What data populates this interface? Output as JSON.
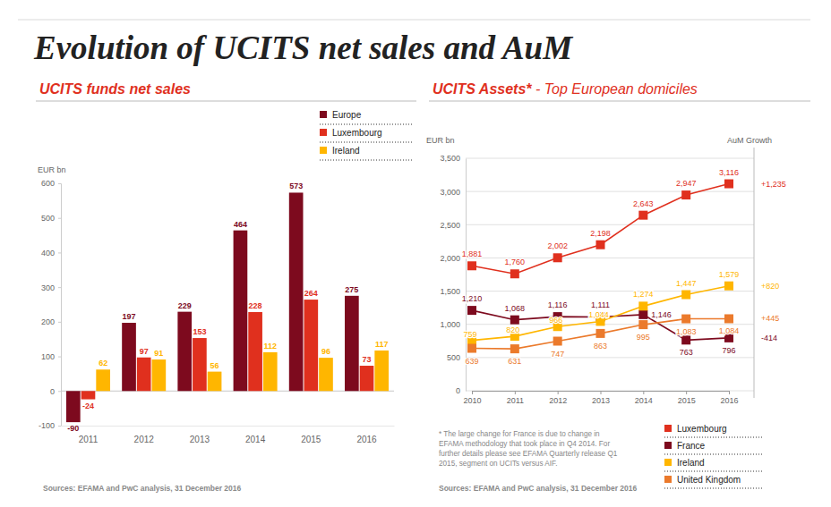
{
  "title": "Evolution of UCITS net sales and AuM",
  "chart_data": [
    {
      "type": "bar",
      "title": "UCITS funds net sales",
      "y_label": "EUR bn",
      "source": "Sources: EFAMA and PwC analysis, 31 December 2016",
      "categories": [
        "2011",
        "2012",
        "2013",
        "2014",
        "2015",
        "2016"
      ],
      "series": [
        {
          "name": "Europe",
          "color": "#7d0a1e",
          "values": [
            -90,
            197,
            229,
            464,
            573,
            275
          ]
        },
        {
          "name": "Luxembourg",
          "color": "#e0301e",
          "values": [
            -24,
            97,
            153,
            228,
            264,
            73
          ]
        },
        {
          "name": "Ireland",
          "color": "#ffb600",
          "values": [
            62,
            91,
            56,
            112,
            96,
            117
          ]
        }
      ],
      "ylim": [
        -100,
        600
      ],
      "yticks": [
        -100,
        0,
        100,
        200,
        300,
        400,
        500,
        600
      ],
      "grid": false,
      "data_labels": true,
      "legend": "top-right"
    },
    {
      "type": "line",
      "title": "UCITS Assets* - Top European domiciles",
      "y_label": "EUR bn",
      "growth_title": "AuM Growth",
      "footnote": [
        "* The large change for France is due to change in",
        "EFAMA methodology that took place in Q4 2014. For",
        "further details please see EFAMA Quarterly release Q1",
        "2015, segment on UCITs versus AIF."
      ],
      "source": "Sources: EFAMA and PwC analysis, 31 December 2016",
      "categories": [
        "2010",
        "2011",
        "2012",
        "2013",
        "2014",
        "2015",
        "2016"
      ],
      "series": [
        {
          "name": "Luxembourg",
          "color": "#e0301e",
          "values": [
            1881,
            1760,
            2002,
            2198,
            2643,
            2947,
            3116
          ],
          "value_labels": [
            "1,881",
            "1,760",
            "2,002",
            "2,198",
            "2,643",
            "2,947",
            "3,116"
          ],
          "growth": 1235,
          "growth_label": "+1,235"
        },
        {
          "name": "France",
          "color": "#7d0a1e",
          "values": [
            1210,
            1068,
            1116,
            1111,
            1146,
            763,
            796
          ],
          "value_labels": [
            "1,210",
            "1,068",
            "1,116",
            "1,111",
            "1,146",
            "763",
            "796"
          ],
          "growth": -414,
          "growth_label": "-414"
        },
        {
          "name": "Ireland",
          "color": "#ffb600",
          "values": [
            759,
            820,
            966,
            1044,
            1274,
            1447,
            1579
          ],
          "value_labels": [
            "759",
            "820",
            "966",
            "1,044",
            "1,274",
            "1,447",
            "1,579"
          ],
          "growth": 820,
          "growth_label": "+820"
        },
        {
          "name": "United Kingdom",
          "color": "#eb7a2c",
          "values": [
            639,
            631,
            747,
            863,
            995,
            1083,
            1084
          ],
          "value_labels": [
            "639",
            "631",
            "747",
            "863",
            "995",
            "1,083",
            "1,084"
          ],
          "growth": 445,
          "growth_label": "+445"
        }
      ],
      "ylim": [
        0,
        3500
      ],
      "yticks": [
        0,
        500,
        {
          "value": 1000,
          "label": "1,000"
        },
        {
          "value": 1500,
          "label": "1,500"
        },
        {
          "value": 2000,
          "label": "2,000"
        },
        {
          "value": 2500,
          "label": "2,500"
        },
        {
          "value": 3000,
          "label": "3,000"
        },
        {
          "value": 3500,
          "label": "3,500"
        }
      ],
      "grid": true,
      "marker": "square",
      "data_labels": true,
      "legend": "bottom-right"
    }
  ]
}
